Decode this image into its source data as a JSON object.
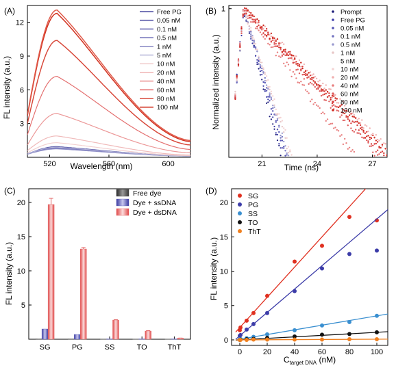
{
  "panels": {
    "A": {
      "label": "(A)"
    },
    "B": {
      "label": "(B)"
    },
    "C": {
      "label": "(C)"
    },
    "D": {
      "label": "(D)"
    }
  },
  "chart_data": [
    {
      "id": "A",
      "type": "line",
      "xlabel": "Wavelength (nm)",
      "ylabel": "FL  intensity (a.u.)",
      "xlim": [
        505,
        615
      ],
      "ylim": [
        0,
        13.5
      ],
      "xticks": [
        520,
        560,
        600
      ],
      "yticks": [
        3,
        6,
        9,
        12
      ],
      "legend_placement": "top-right",
      "peak_x": 525,
      "x_end": 615,
      "series": [
        {
          "name": "Free PG",
          "color": "#4a4aa0",
          "peak": 0.95,
          "start": 0.3,
          "end": 0.12
        },
        {
          "name": "0.05 nM",
          "color": "#5a5aaa",
          "peak": 0.9,
          "start": 0.3,
          "end": 0.12
        },
        {
          "name": "0.1 nM",
          "color": "#6b6bb4",
          "peak": 0.85,
          "start": 0.3,
          "end": 0.12
        },
        {
          "name": "0.5 nM",
          "color": "#7c7cbe",
          "peak": 0.8,
          "start": 0.28,
          "end": 0.11
        },
        {
          "name": "1 nM",
          "color": "#9090c8",
          "peak": 0.75,
          "start": 0.27,
          "end": 0.11
        },
        {
          "name": "5 nM",
          "color": "#b4b4d8",
          "peak": 0.9,
          "start": 0.3,
          "end": 0.12
        },
        {
          "name": "10 nM",
          "color": "#f2d0d0",
          "peak": 1.3,
          "start": 0.4,
          "end": 0.15
        },
        {
          "name": "20 nM",
          "color": "#f0baba",
          "peak": 1.9,
          "start": 0.6,
          "end": 0.2
        },
        {
          "name": "40 nM",
          "color": "#ec9898",
          "peak": 3.9,
          "start": 1.1,
          "end": 0.4
        },
        {
          "name": "60 nM",
          "color": "#e47070",
          "peak": 7.2,
          "start": 2.0,
          "end": 0.7
        },
        {
          "name": "80 nM",
          "color": "#d84a3c",
          "peak": 10.4,
          "start": 3.0,
          "end": 1.1
        },
        {
          "name": "100 nM",
          "color": "#d23220",
          "peak": 12.8,
          "start": 3.7,
          "end": 1.4
        },
        {
          "name": "",
          "color": "#e05a4a",
          "peak": 13.1,
          "start": 3.8,
          "end": 1.5
        }
      ]
    },
    {
      "id": "B",
      "type": "scatter",
      "xlabel": "Time (ns)",
      "ylabel": "Normalized intensity (a.u.)",
      "xlim": [
        19.2,
        27.8
      ],
      "xticks": [
        21,
        24,
        27
      ],
      "yticks_labeled": [
        {
          "v": 1,
          "label": "1"
        }
      ],
      "ylog": true,
      "ylim_log": [
        0.0016,
        1.15
      ],
      "legend_placement": "top-right",
      "peak_time": 20.0,
      "series": [
        {
          "name": "Prompt",
          "color": "#1c1c7a",
          "tau": 0.32,
          "rise": 0.2
        },
        {
          "name": "Free PG",
          "color": "#3c3ca8",
          "tau": 0.34,
          "rise": 0.2
        },
        {
          "name": "0.05 nM",
          "color": "#5454b4",
          "tau": 0.36,
          "rise": 0.2
        },
        {
          "name": "0.1 nM",
          "color": "#7474c0",
          "tau": 0.37,
          "rise": 0.2
        },
        {
          "name": "0.5 nM",
          "color": "#9c9cd0",
          "tau": 0.38,
          "rise": 0.2
        },
        {
          "name": "1 nM",
          "color": "#e8c8c8",
          "tau": 0.4,
          "rise": 0.2
        },
        {
          "name": "5 nM",
          "color": "#ffffff",
          "tau": 0.4,
          "rise": 0.2
        },
        {
          "name": "10 nM",
          "color": "#f4d4d4",
          "tau": 0.42,
          "rise": 0.2
        },
        {
          "name": "20 nM",
          "color": "#f0b0b0",
          "tau": 1.3,
          "rise": 0.2
        },
        {
          "name": "40 nM",
          "color": "#e88080",
          "tau": 0.95,
          "rise": 0.2
        },
        {
          "name": "60 nM",
          "color": "#e06060",
          "tau": 1.15,
          "rise": 0.2
        },
        {
          "name": "80 nM",
          "color": "#d84040",
          "tau": 1.22,
          "rise": 0.2
        },
        {
          "name": "100 nM",
          "color": "#d02a20",
          "tau": 1.25,
          "rise": 0.2
        }
      ]
    },
    {
      "id": "C",
      "type": "bar",
      "xlabel": "",
      "ylabel": "FL  intensity (a.u.)",
      "ylim": [
        0,
        22
      ],
      "yticks": [
        5,
        10,
        15,
        20
      ],
      "categories": [
        "SG",
        "PG",
        "SS",
        "TO",
        "ThT"
      ],
      "legend_placement": "top-right",
      "series": [
        {
          "name": "Free dye",
          "color": "#404040",
          "values": [
            0.05,
            0.05,
            0.03,
            0.03,
            0.03
          ]
        },
        {
          "name": "Dye + ssDNA",
          "color": "#5a5ab8",
          "values": [
            1.5,
            0.7,
            0.05,
            0.05,
            0.05
          ]
        },
        {
          "name": "Dye + dsDNA",
          "color": "#e06060",
          "values": [
            19.7,
            13.2,
            2.8,
            1.2,
            0.15
          ]
        }
      ],
      "errors": [
        0.9,
        0.2,
        0.05,
        0.05,
        0.02
      ]
    },
    {
      "id": "D",
      "type": "scatter",
      "xlabel_main": "C",
      "xlabel_sub": "target DNA",
      "xlabel_unit": " (nM)",
      "ylabel": "FL  intensity (a.u.)",
      "xlim": [
        -6,
        108
      ],
      "ylim": [
        -0.8,
        22
      ],
      "xticks": [
        0,
        20,
        40,
        60,
        80,
        100
      ],
      "yticks": [
        0,
        5,
        10,
        15,
        20
      ],
      "legend_placement": "top-left",
      "series": [
        {
          "name": "SG",
          "color": "#e03020",
          "x": [
            0,
            0.5,
            5,
            10,
            20,
            40,
            60,
            80,
            100
          ],
          "y": [
            1.4,
            1.8,
            2.8,
            3.9,
            6.4,
            11.4,
            13.7,
            17.9,
            17.4
          ],
          "fit": [
            1.8,
            0.22
          ]
        },
        {
          "name": "PG",
          "color": "#3c3ca8",
          "x": [
            0,
            0.5,
            5,
            10,
            20,
            40,
            60,
            80,
            100
          ],
          "y": [
            0.6,
            0.7,
            1.5,
            2.3,
            3.9,
            7.1,
            10.4,
            12.5,
            13.0
          ],
          "fit": [
            0.6,
            0.17
          ]
        },
        {
          "name": "SS",
          "color": "#3a8fd0",
          "x": [
            0,
            0.5,
            5,
            10,
            20,
            40,
            60,
            80,
            100
          ],
          "y": [
            0.1,
            0.12,
            0.25,
            0.45,
            0.8,
            1.4,
            2.1,
            2.6,
            3.5
          ],
          "fit": [
            0.1,
            0.034
          ]
        },
        {
          "name": "TO",
          "color": "#111111",
          "x": [
            0,
            0.5,
            5,
            10,
            20,
            40,
            60,
            80,
            100
          ],
          "y": [
            0.0,
            0.03,
            0.1,
            0.15,
            0.3,
            0.5,
            0.75,
            0.85,
            1.1
          ],
          "fit": [
            0.0,
            0.011
          ]
        },
        {
          "name": "ThT",
          "color": "#f08020",
          "x": [
            0,
            0.5,
            5,
            10,
            20,
            40,
            60,
            80,
            100
          ],
          "y": [
            0.0,
            0.0,
            0.0,
            0.05,
            0.05,
            0.05,
            0.05,
            0.1,
            0.1
          ],
          "fit": [
            0.0,
            0.001
          ]
        }
      ]
    }
  ]
}
